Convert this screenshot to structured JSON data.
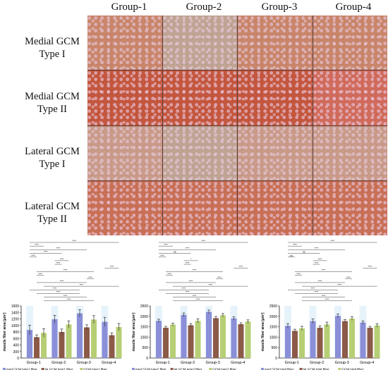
{
  "figure": {
    "columns": [
      "Group-1",
      "Group-2",
      "Group-3",
      "Group-4"
    ],
    "rows": [
      {
        "line1": "Medial GCM",
        "line2": "Type I"
      },
      {
        "line1": "Medial GCM",
        "line2": "Type II"
      },
      {
        "line1": "Lateral GCM",
        "line2": "Type I"
      },
      {
        "line1": "Lateral GCM",
        "line2": "Type II"
      }
    ]
  },
  "chart_data": [
    {
      "type": "bar",
      "title": "",
      "xlabel": "",
      "ylabel": "muscle fiber area (μm²)",
      "categories": [
        "Group-1",
        "Group-2",
        "Group-3",
        "Group-4"
      ],
      "ylim": [
        0,
        1600
      ],
      "yticks": [
        0,
        200,
        400,
        600,
        800,
        1000,
        1200,
        1400,
        1600
      ],
      "series": [
        {
          "name": "med.GCM type1 fiber",
          "color": "#8a8fd8",
          "values": [
            860,
            1190,
            1370,
            1110
          ],
          "errors": [
            150,
            120,
            110,
            140
          ]
        },
        {
          "name": "lat.GCM type1 fiber",
          "color": "#8c5a48",
          "values": [
            640,
            800,
            940,
            700
          ],
          "errors": [
            70,
            90,
            80,
            70
          ]
        },
        {
          "name": "GCM type1 fiber",
          "color": "#b6cf74",
          "values": [
            770,
            1030,
            1180,
            950
          ],
          "errors": [
            130,
            110,
            120,
            110
          ]
        }
      ],
      "significance": [
        "****",
        "****",
        "****",
        "****",
        "****",
        "****",
        "****",
        "****",
        "****",
        "****",
        "****",
        "****",
        "****",
        "****",
        "****",
        "****",
        "****"
      ]
    },
    {
      "type": "bar",
      "title": "",
      "xlabel": "",
      "ylabel": "muscle fiber area (μm²)",
      "categories": [
        "Group-1",
        "Group-2",
        "Group-3",
        "Group-4"
      ],
      "ylim": [
        0,
        2500
      ],
      "yticks": [
        0,
        500,
        1000,
        1500,
        2000,
        2500
      ],
      "series": [
        {
          "name": "med.GCM type2 fiber",
          "color": "#8a8fd8",
          "values": [
            1780,
            2070,
            2210,
            1900
          ],
          "errors": [
            80,
            90,
            90,
            70
          ]
        },
        {
          "name": "lat.GCM type2 fiber",
          "color": "#8c5a48",
          "values": [
            1450,
            1570,
            1910,
            1620
          ],
          "errors": [
            70,
            80,
            80,
            70
          ]
        },
        {
          "name": "GCM type2 fiber",
          "color": "#b6cf74",
          "values": [
            1600,
            1780,
            2050,
            1750
          ],
          "errors": [
            70,
            100,
            80,
            80
          ]
        }
      ],
      "significance": [
        "****",
        "****",
        "****",
        "ns",
        "****",
        "*",
        "****",
        "****",
        "****",
        "****",
        "****",
        "****",
        "****",
        "****",
        "****",
        "****",
        "****"
      ]
    },
    {
      "type": "bar",
      "title": "",
      "xlabel": "",
      "ylabel": "muscle fiber area (μm²)",
      "categories": [
        "Group-1",
        "Group-2",
        "Group-3",
        "Group-4"
      ],
      "ylim": [
        0,
        2500
      ],
      "yticks": [
        0,
        500,
        1000,
        1500,
        2000,
        2500
      ],
      "series": [
        {
          "name": "med.GCM total fiber",
          "color": "#8a8fd8",
          "values": [
            1540,
            1770,
            2020,
            1700
          ],
          "errors": [
            110,
            100,
            90,
            80
          ]
        },
        {
          "name": "lat.GCM total fiber",
          "color": "#8c5a48",
          "values": [
            1300,
            1450,
            1770,
            1450
          ],
          "errors": [
            80,
            90,
            70,
            70
          ]
        },
        {
          "name": "GCM total fiber",
          "color": "#b6cf74",
          "values": [
            1420,
            1610,
            1890,
            1560
          ],
          "errors": [
            100,
            110,
            90,
            80
          ]
        }
      ],
      "significance": [
        "****",
        "****",
        "****",
        "ns",
        "ns",
        "****",
        "****",
        "****",
        "****",
        "****",
        "****",
        "****",
        "****",
        "****",
        "****",
        "****",
        "****"
      ]
    }
  ]
}
